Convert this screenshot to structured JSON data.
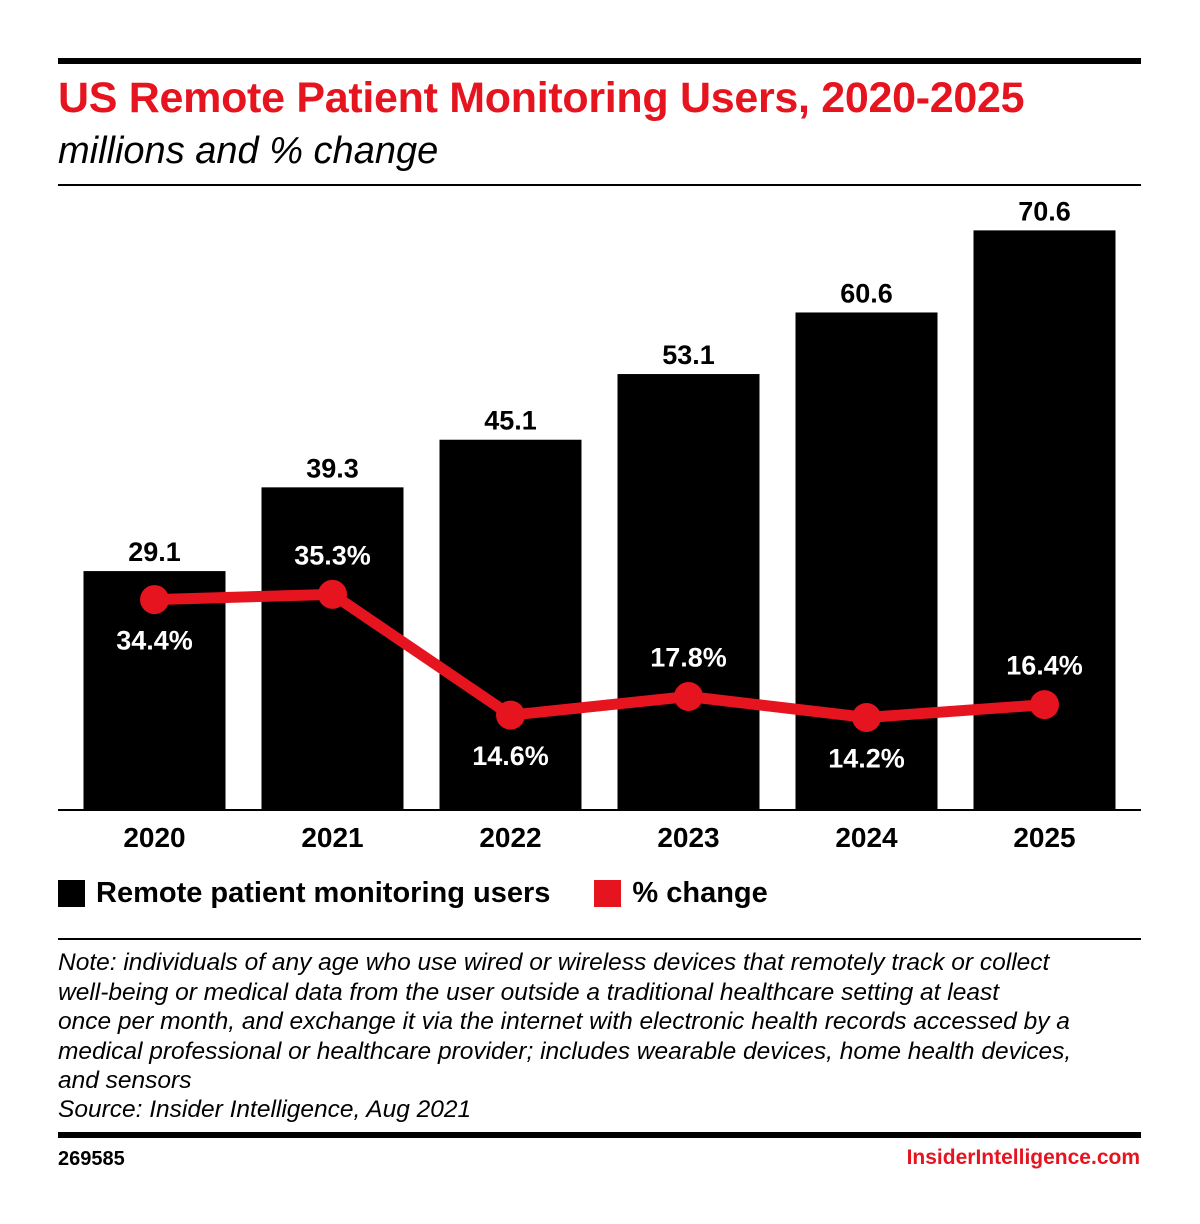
{
  "header": {
    "title": "US Remote Patient Monitoring Users, 2020-2025",
    "subtitle": "millions and % change"
  },
  "colors": {
    "bar": "#000000",
    "line": "#e5141f",
    "accent": "#e5141f"
  },
  "chart_data": {
    "type": "bar",
    "categories": [
      "2020",
      "2021",
      "2022",
      "2023",
      "2024",
      "2025"
    ],
    "series": [
      {
        "name": "Remote patient monitoring users",
        "type": "bar",
        "values": [
          29.1,
          39.3,
          45.1,
          53.1,
          60.6,
          70.6
        ],
        "labels": [
          "29.1",
          "39.3",
          "45.1",
          "53.1",
          "60.6",
          "70.6"
        ]
      },
      {
        "name": "% change",
        "type": "line",
        "values": [
          34.4,
          35.3,
          14.6,
          17.8,
          14.2,
          16.4
        ],
        "labels": [
          "34.4%",
          "35.3%",
          "14.6%",
          "17.8%",
          "14.2%",
          "16.4%"
        ]
      }
    ],
    "ylim": [
      0,
      80
    ],
    "grid": false,
    "legend_position": "bottom-left"
  },
  "legend": [
    {
      "label": "Remote patient monitoring users",
      "color": "#000000"
    },
    {
      "label": "% change",
      "color": "#e5141f"
    }
  ],
  "footer": {
    "note": "Note: individuals of any age who use wired or wireless devices that remotely track or collect\nwell-being or medical data from the user outside a traditional healthcare setting at least\nonce per month, and exchange it via the internet with electronic health records accessed by a\nmedical professional or healthcare provider; includes wearable devices, home health devices,\nand sensors",
    "source": "Source: Insider Intelligence, Aug 2021",
    "chart_id": "269585",
    "brand": "InsiderIntelligence.com"
  }
}
